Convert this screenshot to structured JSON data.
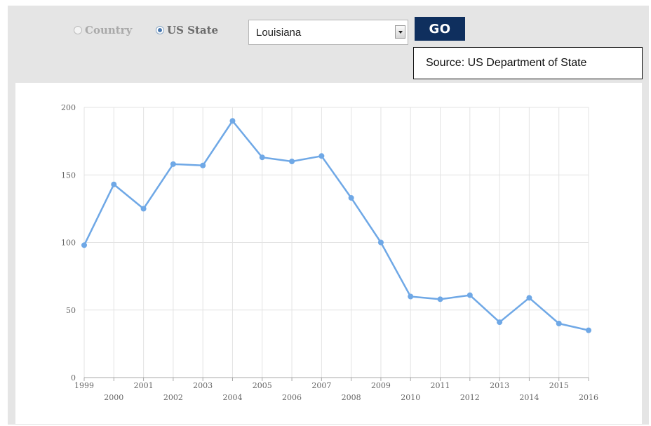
{
  "controls": {
    "radio_country_label": "Country",
    "radio_state_label": "US State",
    "selected_mode": "US State",
    "state_select_value": "Louisiana",
    "go_label": "GO",
    "accent_color": "#0f2f5e"
  },
  "source_note": "Source: US Department of State",
  "chart_data": {
    "type": "line",
    "title": "",
    "xlabel": "",
    "ylabel": "",
    "x": [
      1999,
      2000,
      2001,
      2002,
      2003,
      2004,
      2005,
      2006,
      2007,
      2008,
      2009,
      2010,
      2011,
      2012,
      2013,
      2014,
      2015,
      2016
    ],
    "series": [
      {
        "values": [
          98,
          143,
          125,
          158,
          157,
          190,
          163,
          160,
          164,
          133,
          100,
          60,
          58,
          61,
          41,
          59,
          40,
          35
        ],
        "color": "#6fa8e6"
      }
    ],
    "ylim": [
      0,
      200
    ],
    "yticks": [
      0,
      50,
      100,
      150,
      200
    ],
    "xtick_labels": [
      "1999",
      "2000",
      "2001",
      "2002",
      "2003",
      "2004",
      "2005",
      "2006",
      "2007",
      "2008",
      "2009",
      "2010",
      "2011",
      "2012",
      "2013",
      "2014",
      "2015",
      "2016"
    ],
    "grid": true,
    "legend": false
  }
}
